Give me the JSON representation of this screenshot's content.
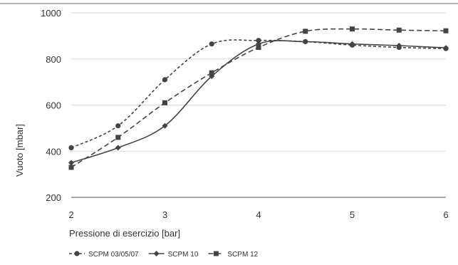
{
  "chart_data": {
    "type": "line",
    "title": "",
    "xlabel": "Pressione di esercizio [bar]",
    "ylabel": "Vuoto [mbar]",
    "xlim": [
      2,
      6
    ],
    "ylim": [
      200,
      1000
    ],
    "xticks": [
      2,
      3,
      4,
      5,
      6
    ],
    "yticks": [
      200,
      400,
      600,
      800,
      1000
    ],
    "grid": "horizontal",
    "legend_position": "bottom",
    "line_color": "#444444",
    "series": [
      {
        "name": "SCPM 03/05/07",
        "marker": "circle",
        "dash": "dashed-short",
        "x": [
          2,
          2.5,
          3,
          3.5,
          4,
          4.5,
          5,
          5.5,
          6
        ],
        "y": [
          415,
          510,
          710,
          865,
          880,
          875,
          860,
          850,
          845
        ]
      },
      {
        "name": "SCPM 10",
        "marker": "diamond",
        "dash": "solid",
        "x": [
          2,
          2.5,
          3,
          3.5,
          4,
          4.5,
          5,
          5.5,
          6
        ],
        "y": [
          350,
          415,
          510,
          725,
          865,
          875,
          865,
          858,
          848
        ]
      },
      {
        "name": "SCPM 12",
        "marker": "square",
        "dash": "dashed-long",
        "x": [
          2,
          2.5,
          3,
          3.5,
          4,
          4.5,
          5,
          5.5,
          6
        ],
        "y": [
          330,
          460,
          610,
          740,
          850,
          920,
          930,
          925,
          922
        ]
      }
    ]
  }
}
